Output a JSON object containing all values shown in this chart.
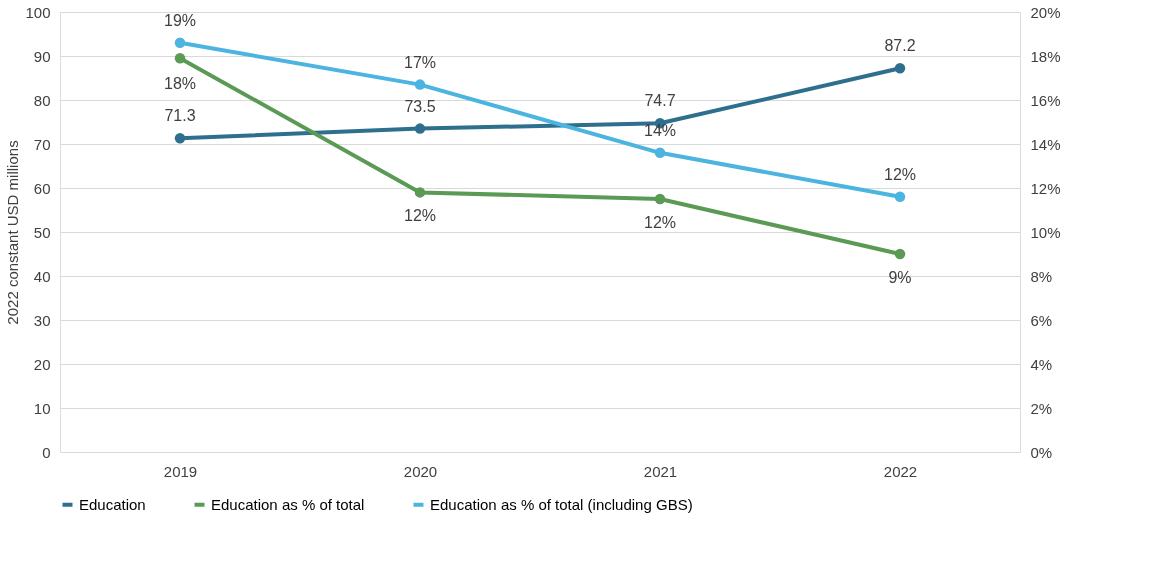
{
  "chart_data": {
    "type": "line",
    "categories": [
      "2019",
      "2020",
      "2021",
      "2022"
    ],
    "ylabel": "2022 constant USD millions",
    "ylim": [
      0,
      100
    ],
    "yticks": [
      0,
      10,
      20,
      30,
      40,
      50,
      60,
      70,
      80,
      90,
      100
    ],
    "y2lim": [
      0,
      20
    ],
    "y2ticks": [
      {
        "value": 0,
        "label": "0%"
      },
      {
        "value": 2,
        "label": "2%"
      },
      {
        "value": 4,
        "label": "4%"
      },
      {
        "value": 6,
        "label": "6%"
      },
      {
        "value": 8,
        "label": "8%"
      },
      {
        "value": 10,
        "label": "10%"
      },
      {
        "value": 12,
        "label": "12%"
      },
      {
        "value": 14,
        "label": "14%"
      },
      {
        "value": 16,
        "label": "16%"
      },
      {
        "value": 18,
        "label": "18%"
      },
      {
        "value": 20,
        "label": "20%"
      }
    ],
    "grid": "y",
    "legend": "bottom",
    "marker": "circle",
    "line_style": "solid",
    "series": [
      {
        "name": "Education",
        "color": "#2e6f8e",
        "values": [
          71.3,
          73.5,
          74.7,
          87.2
        ],
        "value_labels": [
          "71.3",
          "73.5",
          "74.7",
          "87.2"
        ]
      },
      {
        "name": "Education as % of total",
        "color": "#5a9a55",
        "axis": "y2",
        "values": [
          17.9,
          11.8,
          11.5,
          9.0
        ],
        "value_labels": [
          "18%",
          "12%",
          "12%",
          "9%"
        ]
      },
      {
        "name": "Education as % of total (including GBS)",
        "color": "#4bb4e0",
        "axis": "y2",
        "values": [
          18.6,
          16.7,
          13.6,
          11.6
        ],
        "value_labels": [
          "19%",
          "17%",
          "14%",
          "12%"
        ]
      }
    ]
  }
}
